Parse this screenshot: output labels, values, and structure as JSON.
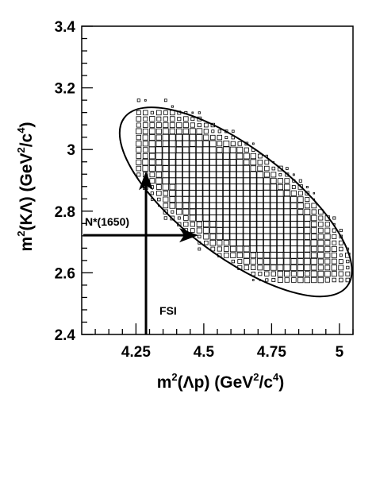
{
  "chart_data": {
    "type": "scatter",
    "style": "box-histogram",
    "xlabel": {
      "prefix": "m",
      "sup1": "2",
      "mid": "(Λp) (GeV",
      "sup2": "2",
      "mid2": "/c",
      "sup3": "4",
      "suffix": ")"
    },
    "ylabel": {
      "prefix": "m",
      "sup1": "2",
      "mid": "(KΛ) (GeV",
      "sup2": "2",
      "mid2": "/c",
      "sup3": "4",
      "suffix": ")"
    },
    "xlim": [
      4.05,
      5.05
    ],
    "ylim": [
      2.4,
      3.4
    ],
    "x_ticks": [
      4.25,
      4.5,
      4.75,
      5.0
    ],
    "x_tick_labels": [
      "4.25",
      "4.5",
      "4.75",
      "5"
    ],
    "y_ticks": [
      2.4,
      2.6,
      2.8,
      3.0,
      3.2,
      3.4
    ],
    "y_tick_labels": [
      "2.4",
      "2.6",
      "2.8",
      "3",
      "3.2",
      "3.4"
    ],
    "grid": false,
    "ellipse": {
      "center_x": 4.618,
      "center_y": 2.83,
      "semi_axis_x": 0.47,
      "semi_axis_y": 0.115,
      "angle_deg": 37
    },
    "annotations": [
      {
        "text": "N*(1650)",
        "arrow_from": [
          4.05,
          2.722
        ],
        "arrow_to": [
          4.48,
          2.722
        ]
      },
      {
        "text": "FSI",
        "arrow_from": [
          4.287,
          2.4
        ],
        "arrow_to": [
          4.287,
          2.93
        ]
      }
    ],
    "histogram": {
      "x_bin_width": 0.025,
      "y_bin_width": 0.02
    }
  }
}
